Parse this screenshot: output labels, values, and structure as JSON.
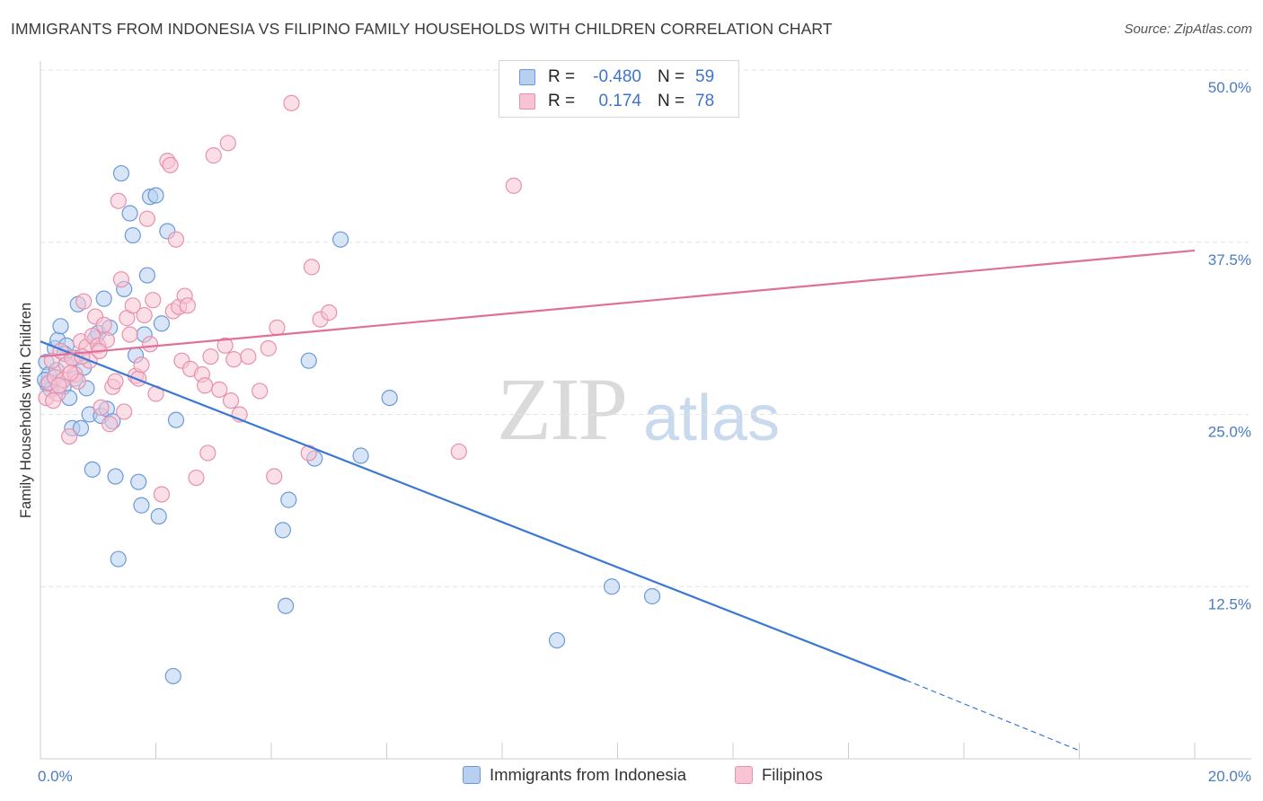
{
  "title": "IMMIGRANTS FROM INDONESIA VS FILIPINO FAMILY HOUSEHOLDS WITH CHILDREN CORRELATION CHART",
  "source": "Source: ZipAtlas.com",
  "watermark": {
    "zip": "ZIP",
    "atlas": "atlas"
  },
  "legend": {
    "rows": [
      {
        "r_label": "R =",
        "r_value": "-0.480",
        "n_label": "N =",
        "n_value": "59"
      },
      {
        "r_label": "R =",
        "r_value": "0.174",
        "n_label": "N =",
        "n_value": "78"
      }
    ]
  },
  "colors": {
    "blue_fill": "#b8d0f0",
    "blue_stroke": "#6b9ad8",
    "blue_line": "#3a78d4",
    "pink_fill": "#f8c4d4",
    "pink_stroke": "#e890ac",
    "pink_line": "#e07098",
    "grid": "#e4e4e4",
    "tick_label": "#4a7cc4"
  },
  "chart_data": {
    "type": "scatter",
    "title": "IMMIGRANTS FROM INDONESIA VS FILIPINO FAMILY HOUSEHOLDS WITH CHILDREN CORRELATION CHART",
    "xlabel": "",
    "ylabel": "Family Households with Children",
    "xlim": [
      0,
      20
    ],
    "ylim": [
      0,
      50
    ],
    "x_tick_labels": [
      {
        "value": 0,
        "label": "0.0%"
      },
      {
        "value": 20,
        "label": "20.0%"
      }
    ],
    "y_tick_labels": [
      {
        "value": 12.5,
        "label": "12.5%"
      },
      {
        "value": 25,
        "label": "25.0%"
      },
      {
        "value": 37.5,
        "label": "37.5%"
      },
      {
        "value": 50,
        "label": "50.0%"
      }
    ],
    "x_minor_ticks": [
      2,
      4,
      6,
      8,
      10,
      12,
      14,
      16,
      18,
      20
    ],
    "series": [
      {
        "name": "Immigrants from Indonesia",
        "color": "blue",
        "points": [
          [
            0.1,
            28.8
          ],
          [
            0.15,
            27.9
          ],
          [
            0.2,
            27.3
          ],
          [
            0.25,
            29.8
          ],
          [
            0.3,
            30.4
          ],
          [
            0.35,
            31.4
          ],
          [
            0.4,
            27.0
          ],
          [
            0.45,
            30.0
          ],
          [
            0.5,
            26.2
          ],
          [
            0.55,
            24.0
          ],
          [
            0.6,
            29.1
          ],
          [
            0.65,
            33.0
          ],
          [
            0.7,
            24.0
          ],
          [
            0.75,
            28.4
          ],
          [
            0.8,
            26.9
          ],
          [
            0.85,
            25.0
          ],
          [
            0.9,
            21.0
          ],
          [
            0.95,
            30.5
          ],
          [
            1.0,
            30.9
          ],
          [
            1.05,
            24.9
          ],
          [
            1.1,
            33.4
          ],
          [
            1.15,
            25.4
          ],
          [
            1.2,
            31.3
          ],
          [
            1.25,
            24.5
          ],
          [
            1.3,
            20.5
          ],
          [
            1.35,
            14.5
          ],
          [
            1.4,
            42.5
          ],
          [
            1.45,
            34.1
          ],
          [
            1.55,
            39.6
          ],
          [
            1.6,
            38.0
          ],
          [
            1.65,
            29.3
          ],
          [
            1.7,
            20.1
          ],
          [
            1.75,
            18.4
          ],
          [
            1.8,
            30.8
          ],
          [
            1.85,
            35.1
          ],
          [
            1.9,
            40.8
          ],
          [
            2.0,
            40.9
          ],
          [
            2.05,
            17.6
          ],
          [
            2.1,
            31.6
          ],
          [
            2.2,
            38.3
          ],
          [
            2.3,
            6.0
          ],
          [
            2.35,
            24.6
          ],
          [
            4.2,
            16.6
          ],
          [
            4.25,
            11.1
          ],
          [
            4.3,
            18.8
          ],
          [
            4.65,
            28.9
          ],
          [
            4.75,
            21.8
          ],
          [
            5.2,
            37.7
          ],
          [
            5.55,
            22.0
          ],
          [
            6.05,
            26.2
          ],
          [
            8.95,
            8.6
          ],
          [
            9.9,
            12.5
          ],
          [
            10.6,
            11.8
          ],
          [
            0.12,
            27.2
          ],
          [
            0.18,
            26.8
          ],
          [
            0.28,
            28.2
          ],
          [
            0.42,
            29.4
          ],
          [
            0.6,
            27.6
          ],
          [
            0.08,
            27.5
          ]
        ]
      },
      {
        "name": "Filipinos",
        "color": "pink",
        "points": [
          [
            0.1,
            26.2
          ],
          [
            0.15,
            27.3
          ],
          [
            0.2,
            28.9
          ],
          [
            0.25,
            27.7
          ],
          [
            0.3,
            26.5
          ],
          [
            0.35,
            29.6
          ],
          [
            0.4,
            27.5
          ],
          [
            0.45,
            28.6
          ],
          [
            0.5,
            23.4
          ],
          [
            0.55,
            29.1
          ],
          [
            0.6,
            27.9
          ],
          [
            0.65,
            27.4
          ],
          [
            0.7,
            30.3
          ],
          [
            0.75,
            33.2
          ],
          [
            0.8,
            29.9
          ],
          [
            0.85,
            28.9
          ],
          [
            0.9,
            30.7
          ],
          [
            0.95,
            32.1
          ],
          [
            1.0,
            30.0
          ],
          [
            1.05,
            25.5
          ],
          [
            1.1,
            31.5
          ],
          [
            1.15,
            30.4
          ],
          [
            1.2,
            24.3
          ],
          [
            1.25,
            27.0
          ],
          [
            1.3,
            27.4
          ],
          [
            1.35,
            40.5
          ],
          [
            1.4,
            34.8
          ],
          [
            1.45,
            25.2
          ],
          [
            1.5,
            32.0
          ],
          [
            1.55,
            30.8
          ],
          [
            1.6,
            32.9
          ],
          [
            1.65,
            27.8
          ],
          [
            1.7,
            27.6
          ],
          [
            1.75,
            28.6
          ],
          [
            1.8,
            32.2
          ],
          [
            1.85,
            39.2
          ],
          [
            1.9,
            30.1
          ],
          [
            1.95,
            33.3
          ],
          [
            2.0,
            26.5
          ],
          [
            2.1,
            19.2
          ],
          [
            2.2,
            43.4
          ],
          [
            2.25,
            43.1
          ],
          [
            2.3,
            32.5
          ],
          [
            2.35,
            37.7
          ],
          [
            2.4,
            32.8
          ],
          [
            2.45,
            28.9
          ],
          [
            2.5,
            33.6
          ],
          [
            2.55,
            32.9
          ],
          [
            2.6,
            28.3
          ],
          [
            2.7,
            20.4
          ],
          [
            2.8,
            27.9
          ],
          [
            2.85,
            27.1
          ],
          [
            2.9,
            22.2
          ],
          [
            2.95,
            29.2
          ],
          [
            3.0,
            43.8
          ],
          [
            3.1,
            26.8
          ],
          [
            3.2,
            30.0
          ],
          [
            3.25,
            44.7
          ],
          [
            3.3,
            26.0
          ],
          [
            3.35,
            29.0
          ],
          [
            3.45,
            25.0
          ],
          [
            3.6,
            29.2
          ],
          [
            3.8,
            26.7
          ],
          [
            3.95,
            29.8
          ],
          [
            4.05,
            20.5
          ],
          [
            4.1,
            31.3
          ],
          [
            4.35,
            47.6
          ],
          [
            4.65,
            22.2
          ],
          [
            4.7,
            35.7
          ],
          [
            4.85,
            31.9
          ],
          [
            5.0,
            32.4
          ],
          [
            7.25,
            22.3
          ],
          [
            8.2,
            41.6
          ],
          [
            0.22,
            26.0
          ],
          [
            0.32,
            27.1
          ],
          [
            0.52,
            28.0
          ],
          [
            0.72,
            29.2
          ],
          [
            1.02,
            29.6
          ]
        ]
      }
    ],
    "trend_lines": [
      {
        "series": "Immigrants from Indonesia",
        "x0": 0.0,
        "y0": 30.3,
        "x1": 15.0,
        "y1": 5.7,
        "dashed_to_x": 18.0,
        "dashed_to_y": 0.6
      },
      {
        "series": "Filipinos",
        "x0": 0.0,
        "y0": 29.2,
        "x1": 20.0,
        "y1": 36.9
      }
    ],
    "legend_position": "top-center"
  }
}
